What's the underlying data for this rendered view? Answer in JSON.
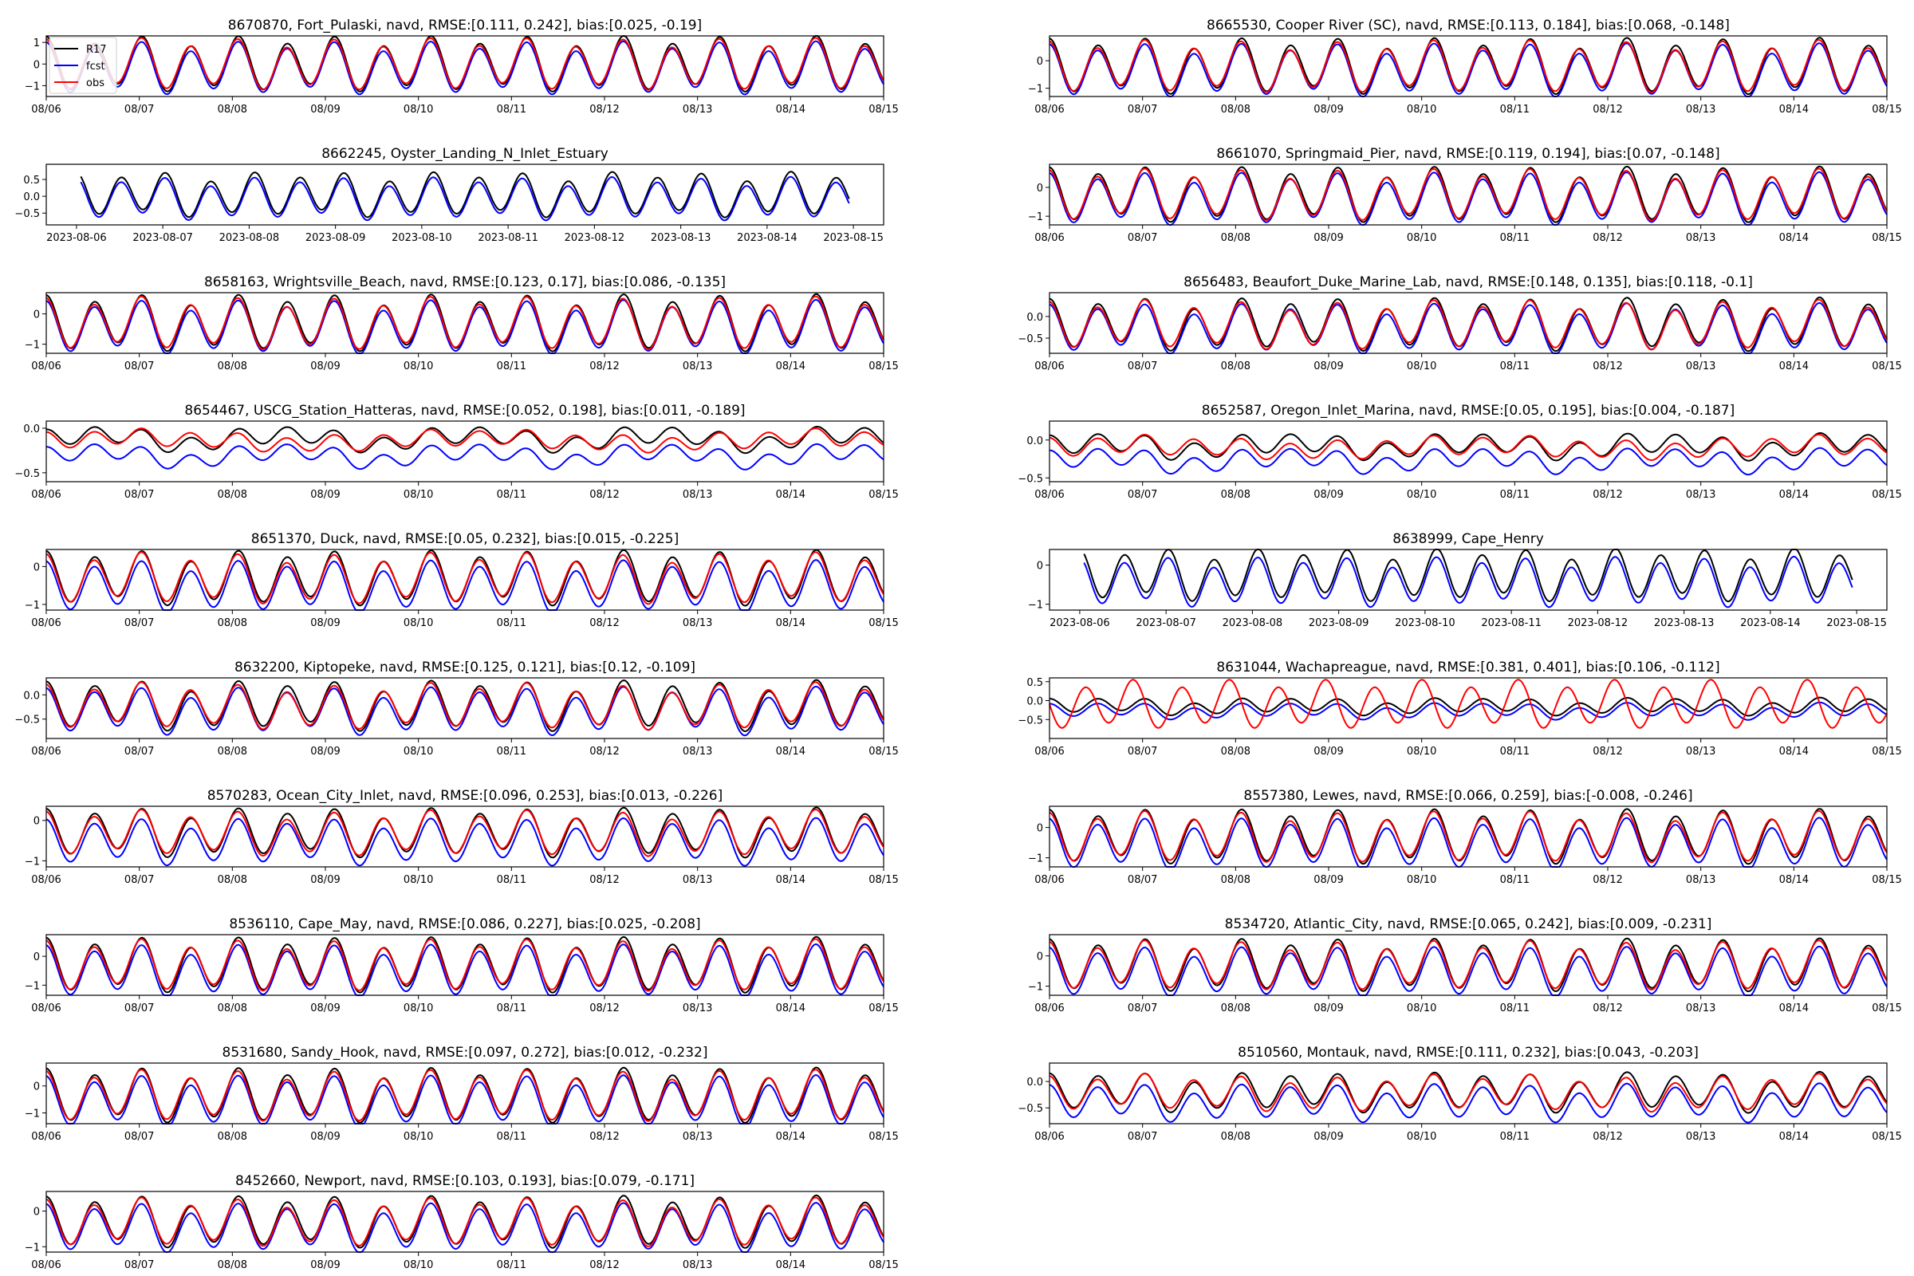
{
  "figure": {
    "series_colors": {
      "R17": "#000000",
      "fcst": "#0000ff",
      "obs": "#ff0000"
    },
    "legend": {
      "placement": "upper-left of first panel",
      "entries": [
        "R17",
        "fcst",
        "obs"
      ]
    }
  },
  "chart_data": [
    {
      "type": "line",
      "title": "8670870, Fort_Pulaski, navd, RMSE:[0.111, 0.242], bias:[0.025, -0.19]",
      "mean": 0.0,
      "amp": 1.08,
      "fcst_off": -0.19,
      "obs": true,
      "ylim": [
        -1.5,
        1.3
      ],
      "yticks": [
        -1,
        0,
        1
      ],
      "yticklabels": [
        "−1",
        "0",
        "1"
      ],
      "xticks": [
        "08/06",
        "08/07",
        "08/08",
        "08/09",
        "08/10",
        "08/11",
        "08/12",
        "08/13",
        "08/14",
        "08/15"
      ],
      "obs_mode": "normal",
      "xaxis": "short"
    },
    {
      "type": "line",
      "title": "8665530, Cooper River (SC), navd, RMSE:[0.113, 0.184], bias:[0.068, -0.148]",
      "mean": -0.2,
      "amp": 0.85,
      "fcst_off": -0.15,
      "obs": true,
      "ylim": [
        -1.3,
        0.9
      ],
      "yticks": [
        -1,
        0
      ],
      "yticklabels": [
        "−1",
        "0"
      ],
      "xticks": [
        "08/06",
        "08/07",
        "08/08",
        "08/09",
        "08/10",
        "08/11",
        "08/12",
        "08/13",
        "08/14",
        "08/15"
      ],
      "obs_mode": "normal",
      "xaxis": "short"
    },
    {
      "type": "line",
      "title": "8662245, Oyster_Landing_N_Inlet_Estuary",
      "mean": 0.05,
      "amp": 0.55,
      "fcst_off": -0.12,
      "obs": false,
      "ylim": [
        -0.85,
        0.95
      ],
      "yticks": [
        -0.5,
        0,
        0.5
      ],
      "yticklabels": [
        "−0.5",
        "0.0",
        "0.5"
      ],
      "xticks": [
        "2023-08-06",
        "2023-08-07",
        "2023-08-08",
        "2023-08-09",
        "2023-08-10",
        "2023-08-11",
        "2023-08-12",
        "2023-08-13",
        "2023-08-14",
        "2023-08-15"
      ],
      "obs_mode": "none",
      "xaxis": "long"
    },
    {
      "type": "line",
      "title": "8661070, Springmaid_Pier, navd, RMSE:[0.119, 0.194], bias:[0.07, -0.148]",
      "mean": -0.25,
      "amp": 0.8,
      "fcst_off": -0.15,
      "obs": true,
      "ylim": [
        -1.3,
        0.8
      ],
      "yticks": [
        -1,
        0
      ],
      "yticklabels": [
        "−1",
        "0"
      ],
      "xticks": [
        "08/06",
        "08/07",
        "08/08",
        "08/09",
        "08/10",
        "08/11",
        "08/12",
        "08/13",
        "08/14",
        "08/15"
      ],
      "obs_mode": "normal",
      "xaxis": "short"
    },
    {
      "type": "line",
      "title": "8658163, Wrightsville_Beach, navd, RMSE:[0.123, 0.17], bias:[0.086, -0.135]",
      "mean": -0.3,
      "amp": 0.78,
      "fcst_off": -0.14,
      "obs": true,
      "ylim": [
        -1.3,
        0.7
      ],
      "yticks": [
        -1,
        0
      ],
      "yticklabels": [
        "−1",
        "0"
      ],
      "xticks": [
        "08/06",
        "08/07",
        "08/08",
        "08/09",
        "08/10",
        "08/11",
        "08/12",
        "08/13",
        "08/14",
        "08/15"
      ],
      "obs_mode": "normal",
      "xaxis": "short"
    },
    {
      "type": "line",
      "title": "8656483, Beaufort_Duke_Marine_Lab, navd, RMSE:[0.148, 0.135], bias:[0.118, -0.1]",
      "mean": -0.18,
      "amp": 0.5,
      "fcst_off": -0.1,
      "obs": true,
      "ylim": [
        -0.85,
        0.55
      ],
      "yticks": [
        -0.5,
        0
      ],
      "yticklabels": [
        "−0.5",
        "0.0"
      ],
      "xticks": [
        "08/06",
        "08/07",
        "08/08",
        "08/09",
        "08/10",
        "08/11",
        "08/12",
        "08/13",
        "08/14",
        "08/15"
      ],
      "obs_mode": "normal",
      "xaxis": "short"
    },
    {
      "type": "line",
      "title": "8654467, USCG_Station_Hatteras, navd, RMSE:[0.052, 0.198], bias:[0.011, -0.189]",
      "mean": -0.12,
      "amp": 0.09,
      "fcst_off": -0.19,
      "obs": true,
      "ylim": [
        -0.6,
        0.08
      ],
      "yticks": [
        -0.5,
        0
      ],
      "yticklabels": [
        "−0.5",
        "0.0"
      ],
      "xticks": [
        "08/06",
        "08/07",
        "08/08",
        "08/09",
        "08/10",
        "08/11",
        "08/12",
        "08/13",
        "08/14",
        "08/15"
      ],
      "obs_mode": "normal",
      "xaxis": "short"
    },
    {
      "type": "line",
      "title": "8652587, Oregon_Inlet_Marina, navd, RMSE:[0.05, 0.195], bias:[0.004, -0.187]",
      "mean": -0.08,
      "amp": 0.12,
      "fcst_off": -0.19,
      "obs": true,
      "ylim": [
        -0.55,
        0.25
      ],
      "yticks": [
        -0.5,
        0
      ],
      "yticklabels": [
        "−0.5",
        "0.0"
      ],
      "xticks": [
        "08/06",
        "08/07",
        "08/08",
        "08/09",
        "08/10",
        "08/11",
        "08/12",
        "08/13",
        "08/14",
        "08/15"
      ],
      "obs_mode": "normal",
      "xaxis": "short"
    },
    {
      "type": "line",
      "title": "8651370, Duck, navd, RMSE:[0.05, 0.232], bias:[0.015, -0.225]",
      "mean": -0.3,
      "amp": 0.6,
      "fcst_off": -0.23,
      "obs": true,
      "ylim": [
        -1.15,
        0.45
      ],
      "yticks": [
        -1,
        0
      ],
      "yticklabels": [
        "−1",
        "0"
      ],
      "xticks": [
        "08/06",
        "08/07",
        "08/08",
        "08/09",
        "08/10",
        "08/11",
        "08/12",
        "08/13",
        "08/14",
        "08/15"
      ],
      "obs_mode": "normal",
      "xaxis": "short"
    },
    {
      "type": "line",
      "title": "8638999, Cape_Henry",
      "mean": -0.25,
      "amp": 0.55,
      "fcst_off": -0.18,
      "obs": false,
      "ylim": [
        -1.15,
        0.4
      ],
      "yticks": [
        -1,
        0
      ],
      "yticklabels": [
        "−1",
        "0"
      ],
      "xticks": [
        "2023-08-06",
        "2023-08-07",
        "2023-08-08",
        "2023-08-09",
        "2023-08-10",
        "2023-08-11",
        "2023-08-12",
        "2023-08-13",
        "2023-08-14",
        "2023-08-15"
      ],
      "obs_mode": "none",
      "xaxis": "long"
    },
    {
      "type": "line",
      "title": "8632200, Kiptopeke, navd, RMSE:[0.125, 0.121], bias:[0.12, -0.109]",
      "mean": -0.22,
      "amp": 0.42,
      "fcst_off": -0.11,
      "obs": true,
      "ylim": [
        -0.9,
        0.35
      ],
      "yticks": [
        -0.5,
        0
      ],
      "yticklabels": [
        "−0.5",
        "0.0"
      ],
      "xticks": [
        "08/06",
        "08/07",
        "08/08",
        "08/09",
        "08/10",
        "08/11",
        "08/12",
        "08/13",
        "08/14",
        "08/15"
      ],
      "obs_mode": "normal",
      "xaxis": "short"
    },
    {
      "type": "line",
      "title": "8631044, Wachapreague, navd, RMSE:[0.381, 0.401], bias:[0.106, -0.112]",
      "mean": -0.15,
      "amp": 0.17,
      "fcst_off": -0.12,
      "obs": true,
      "ylim": [
        -1.0,
        0.6
      ],
      "yticks": [
        -0.5,
        0,
        0.5
      ],
      "yticklabels": [
        "−0.5",
        "0.0",
        "0.5"
      ],
      "xticks": [
        "08/06",
        "08/07",
        "08/08",
        "08/09",
        "08/10",
        "08/11",
        "08/12",
        "08/13",
        "08/14",
        "08/15"
      ],
      "obs_mode": "phase",
      "xaxis": "short"
    },
    {
      "type": "line",
      "title": "8570283, Ocean_City_Inlet, navd, RMSE:[0.096, 0.253], bias:[0.013, -0.226]",
      "mean": -0.3,
      "amp": 0.5,
      "fcst_off": -0.23,
      "obs": true,
      "ylim": [
        -1.15,
        0.35
      ],
      "yticks": [
        -1,
        0
      ],
      "yticklabels": [
        "−1",
        "0"
      ],
      "xticks": [
        "08/06",
        "08/07",
        "08/08",
        "08/09",
        "08/10",
        "08/11",
        "08/12",
        "08/13",
        "08/14",
        "08/15"
      ],
      "obs_mode": "normal",
      "xaxis": "short"
    },
    {
      "type": "line",
      "title": "8557380, Lewes, navd, RMSE:[0.066, 0.259], bias:[-0.008, -0.246]",
      "mean": -0.3,
      "amp": 0.75,
      "fcst_off": -0.25,
      "obs": true,
      "ylim": [
        -1.3,
        0.7
      ],
      "yticks": [
        -1,
        0
      ],
      "yticklabels": [
        "−1",
        "0"
      ],
      "xticks": [
        "08/06",
        "08/07",
        "08/08",
        "08/09",
        "08/10",
        "08/11",
        "08/12",
        "08/13",
        "08/14",
        "08/15"
      ],
      "obs_mode": "normal",
      "xaxis": "short"
    },
    {
      "type": "line",
      "title": "8536110, Cape_May, navd, RMSE:[0.086, 0.227], bias:[0.025, -0.208]",
      "mean": -0.3,
      "amp": 0.8,
      "fcst_off": -0.21,
      "obs": true,
      "ylim": [
        -1.35,
        0.75
      ],
      "yticks": [
        -1,
        0
      ],
      "yticklabels": [
        "−1",
        "0"
      ],
      "xticks": [
        "08/06",
        "08/07",
        "08/08",
        "08/09",
        "08/10",
        "08/11",
        "08/12",
        "08/13",
        "08/14",
        "08/15"
      ],
      "obs_mode": "normal",
      "xaxis": "short"
    },
    {
      "type": "line",
      "title": "8534720, Atlantic_City, navd, RMSE:[0.065, 0.242], bias:[0.009, -0.231]",
      "mean": -0.3,
      "amp": 0.72,
      "fcst_off": -0.23,
      "obs": true,
      "ylim": [
        -1.3,
        0.7
      ],
      "yticks": [
        -1,
        0
      ],
      "yticklabels": [
        "−1",
        "0"
      ],
      "xticks": [
        "08/06",
        "08/07",
        "08/08",
        "08/09",
        "08/10",
        "08/11",
        "08/12",
        "08/13",
        "08/14",
        "08/15"
      ],
      "obs_mode": "normal",
      "xaxis": "short"
    },
    {
      "type": "line",
      "title": "8531680, Sandy_Hook, navd, RMSE:[0.097, 0.272], bias:[0.012, -0.232]",
      "mean": -0.35,
      "amp": 0.85,
      "fcst_off": -0.23,
      "obs": true,
      "ylim": [
        -1.4,
        0.85
      ],
      "yticks": [
        -1,
        0
      ],
      "yticklabels": [
        "−1",
        "0"
      ],
      "xticks": [
        "08/06",
        "08/07",
        "08/08",
        "08/09",
        "08/10",
        "08/11",
        "08/12",
        "08/13",
        "08/14",
        "08/15"
      ],
      "obs_mode": "normal",
      "xaxis": "short"
    },
    {
      "type": "line",
      "title": "8510560, Montauk, navd, RMSE:[0.111, 0.232], bias:[0.043, -0.203]",
      "mean": -0.2,
      "amp": 0.3,
      "fcst_off": -0.2,
      "obs": true,
      "ylim": [
        -0.8,
        0.35
      ],
      "yticks": [
        -0.5,
        0
      ],
      "yticklabels": [
        "−0.5",
        "0.0"
      ],
      "xticks": [
        "08/06",
        "08/07",
        "08/08",
        "08/09",
        "08/10",
        "08/11",
        "08/12",
        "08/13",
        "08/14",
        "08/15"
      ],
      "obs_mode": "normal",
      "xaxis": "short"
    },
    {
      "type": "line",
      "title": "8452660, Newport, navd, RMSE:[0.103, 0.193], bias:[0.079, -0.171]",
      "mean": -0.3,
      "amp": 0.6,
      "fcst_off": -0.17,
      "obs": true,
      "ylim": [
        -1.15,
        0.55
      ],
      "yticks": [
        -1,
        0
      ],
      "yticklabels": [
        "−1",
        "0"
      ],
      "xticks": [
        "08/06",
        "08/07",
        "08/08",
        "08/09",
        "08/10",
        "08/11",
        "08/12",
        "08/13",
        "08/14",
        "08/15"
      ],
      "obs_mode": "normal",
      "xaxis": "short"
    }
  ]
}
